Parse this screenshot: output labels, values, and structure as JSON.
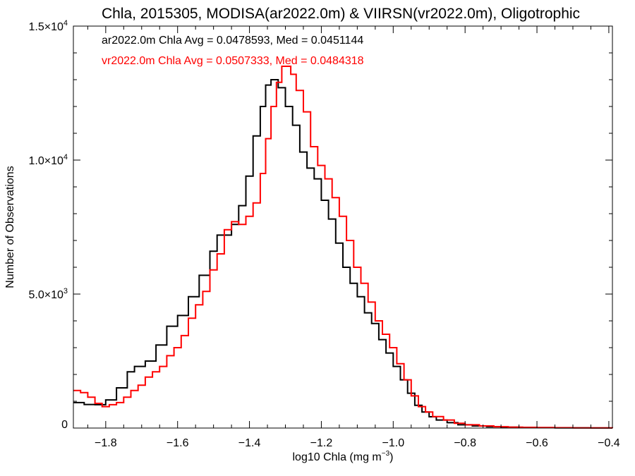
{
  "chart_data": {
    "type": "line",
    "step": true,
    "title": "Chla, 2015305, MODISA(ar2022.0m) & VIIRSN(vr2022.0m), Oligotrophic",
    "xlabel": {
      "base": "log10 Chla (mg m",
      "sup": "−3",
      "tail": ")"
    },
    "ylabel": "Number of Observations",
    "xlim": [
      -1.89,
      -0.39
    ],
    "ylim": [
      0,
      15000
    ],
    "x_ticks": [
      {
        "v": -1.8,
        "label": "−1.8"
      },
      {
        "v": -1.6,
        "label": "−1.6"
      },
      {
        "v": -1.4,
        "label": "−1.4"
      },
      {
        "v": -1.2,
        "label": "−1.2"
      },
      {
        "v": -1.0,
        "label": "−1.0"
      },
      {
        "v": -0.8,
        "label": "−0.8"
      },
      {
        "v": -0.6,
        "label": "−0.6"
      },
      {
        "v": -0.4,
        "label": "−0.4"
      }
    ],
    "y_ticks": [
      {
        "v": 0,
        "label": "0",
        "sup": ""
      },
      {
        "v": 5000,
        "label": "5.0×10",
        "sup": "3"
      },
      {
        "v": 10000,
        "label": "1.0×10",
        "sup": "4"
      },
      {
        "v": 15000,
        "label": "1.5×10",
        "sup": "4"
      }
    ],
    "annotations": [
      {
        "text": "ar2022.0m Chla Avg = 0.0478593, Med = 0.0451144",
        "color": "#000000"
      },
      {
        "text": "vr2022.0m Chla Avg = 0.0507333, Med = 0.0484318",
        "color": "#ff0000"
      }
    ],
    "series": [
      {
        "color": "#000000",
        "points": [
          [
            -1.89,
            950
          ],
          [
            -1.86,
            880
          ],
          [
            -1.83,
            870
          ],
          [
            -1.8,
            1050
          ],
          [
            -1.77,
            1500
          ],
          [
            -1.74,
            2100
          ],
          [
            -1.72,
            2300
          ],
          [
            -1.69,
            2500
          ],
          [
            -1.66,
            3100
          ],
          [
            -1.63,
            3800
          ],
          [
            -1.6,
            4200
          ],
          [
            -1.57,
            4900
          ],
          [
            -1.54,
            5700
          ],
          [
            -1.51,
            6600
          ],
          [
            -1.49,
            7200
          ],
          [
            -1.47,
            7200
          ],
          [
            -1.45,
            7600
          ],
          [
            -1.43,
            8300
          ],
          [
            -1.41,
            9400
          ],
          [
            -1.39,
            10900
          ],
          [
            -1.37,
            12000
          ],
          [
            -1.355,
            12800
          ],
          [
            -1.34,
            13000
          ],
          [
            -1.32,
            12700
          ],
          [
            -1.3,
            12000
          ],
          [
            -1.28,
            11300
          ],
          [
            -1.26,
            10300
          ],
          [
            -1.24,
            9700
          ],
          [
            -1.22,
            9300
          ],
          [
            -1.2,
            8500
          ],
          [
            -1.18,
            7800
          ],
          [
            -1.16,
            6900
          ],
          [
            -1.14,
            6000
          ],
          [
            -1.12,
            5400
          ],
          [
            -1.1,
            4900
          ],
          [
            -1.08,
            4300
          ],
          [
            -1.06,
            3900
          ],
          [
            -1.04,
            3300
          ],
          [
            -1.02,
            2800
          ],
          [
            -1.0,
            2300
          ],
          [
            -0.98,
            1800
          ],
          [
            -0.96,
            1300
          ],
          [
            -0.94,
            850
          ],
          [
            -0.92,
            600
          ],
          [
            -0.9,
            420
          ],
          [
            -0.88,
            300
          ],
          [
            -0.85,
            200
          ],
          [
            -0.82,
            120
          ],
          [
            -0.78,
            80
          ],
          [
            -0.74,
            50
          ],
          [
            -0.7,
            35
          ],
          [
            -0.65,
            20
          ],
          [
            -0.6,
            12
          ],
          [
            -0.55,
            8
          ],
          [
            -0.5,
            5
          ],
          [
            -0.45,
            3
          ],
          [
            -0.39,
            2
          ]
        ]
      },
      {
        "color": "#ff0000",
        "points": [
          [
            -1.89,
            1400
          ],
          [
            -1.87,
            1320
          ],
          [
            -1.85,
            1150
          ],
          [
            -1.83,
            920
          ],
          [
            -1.81,
            800
          ],
          [
            -1.79,
            870
          ],
          [
            -1.77,
            950
          ],
          [
            -1.75,
            1150
          ],
          [
            -1.73,
            1400
          ],
          [
            -1.71,
            1600
          ],
          [
            -1.69,
            1900
          ],
          [
            -1.67,
            2100
          ],
          [
            -1.65,
            2300
          ],
          [
            -1.63,
            2700
          ],
          [
            -1.61,
            3000
          ],
          [
            -1.59,
            3450
          ],
          [
            -1.57,
            4100
          ],
          [
            -1.55,
            4600
          ],
          [
            -1.53,
            5100
          ],
          [
            -1.51,
            5900
          ],
          [
            -1.49,
            6500
          ],
          [
            -1.47,
            7400
          ],
          [
            -1.45,
            7700
          ],
          [
            -1.43,
            7600
          ],
          [
            -1.41,
            7900
          ],
          [
            -1.39,
            8400
          ],
          [
            -1.37,
            9500
          ],
          [
            -1.355,
            10800
          ],
          [
            -1.34,
            12000
          ],
          [
            -1.325,
            12900
          ],
          [
            -1.31,
            13500
          ],
          [
            -1.3,
            13500
          ],
          [
            -1.285,
            13200
          ],
          [
            -1.27,
            12600
          ],
          [
            -1.25,
            11800
          ],
          [
            -1.23,
            10500
          ],
          [
            -1.21,
            9800
          ],
          [
            -1.19,
            9300
          ],
          [
            -1.17,
            8600
          ],
          [
            -1.15,
            7900
          ],
          [
            -1.13,
            7000
          ],
          [
            -1.11,
            6000
          ],
          [
            -1.09,
            5400
          ],
          [
            -1.07,
            4700
          ],
          [
            -1.05,
            4000
          ],
          [
            -1.03,
            3500
          ],
          [
            -1.01,
            3000
          ],
          [
            -0.99,
            2400
          ],
          [
            -0.97,
            1800
          ],
          [
            -0.95,
            1200
          ],
          [
            -0.93,
            800
          ],
          [
            -0.91,
            600
          ],
          [
            -0.89,
            430
          ],
          [
            -0.86,
            300
          ],
          [
            -0.83,
            180
          ],
          [
            -0.8,
            120
          ],
          [
            -0.76,
            80
          ],
          [
            -0.72,
            50
          ],
          [
            -0.68,
            35
          ],
          [
            -0.64,
            25
          ],
          [
            -0.6,
            18
          ],
          [
            -0.55,
            12
          ],
          [
            -0.5,
            8
          ],
          [
            -0.45,
            5
          ],
          [
            -0.39,
            3
          ]
        ]
      }
    ]
  }
}
